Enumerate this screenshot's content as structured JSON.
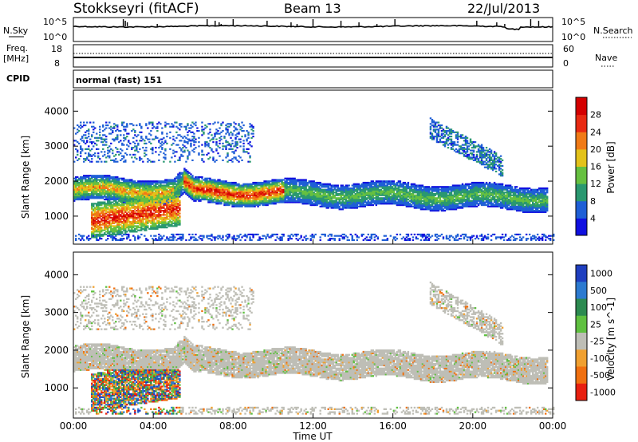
{
  "header": {
    "station": "Stokkseyri (fitACF)",
    "beam": "Beam 13",
    "date": "22/Jul/2013"
  },
  "sky_panel": {
    "left_label": "N.Sky",
    "right_label": "N.Search",
    "tick_top_left": "10^5",
    "tick_bottom_left": "10^0",
    "tick_top_right": "10^5",
    "tick_bottom_right": "10^0"
  },
  "freq_panel": {
    "left_label_1": "Freq.",
    "left_label_2": "[MHz]",
    "tick_top_left": "18",
    "tick_bottom_left": "8",
    "right_label": "Nave",
    "tick_top_right": "60",
    "tick_bottom_right": "0"
  },
  "cpid": {
    "label": "CPID",
    "mode": "normal (fast) 151"
  },
  "chart_data": [
    {
      "type": "heatmap",
      "panel": "power",
      "ylabel": "Slant Range [km]",
      "xlabel": "",
      "x_ticks": [
        "00:00",
        "04:00",
        "08:00",
        "12:00",
        "16:00",
        "20:00",
        "00:00"
      ],
      "y_ticks": [
        "1000",
        "2000",
        "3000",
        "4000"
      ],
      "ylim": [
        200,
        4600
      ],
      "xlim_hours": [
        0,
        24
      ],
      "colorbar": {
        "label": "Power [dB]",
        "ticks": [
          "4",
          "8",
          "12",
          "16",
          "20",
          "24",
          "28"
        ],
        "range": [
          0,
          32
        ],
        "colors": [
          "#1010e0",
          "#1f5fd6",
          "#2a9870",
          "#66c040",
          "#e3c21a",
          "#f07a16",
          "#e82a12",
          "#d40000"
        ]
      },
      "bands": [
        {
          "name": "main-echo",
          "t_start": 0.0,
          "t_end": 23.7,
          "r_center_start": 1750,
          "r_center_end": 1500,
          "width": 350
        },
        {
          "name": "near-range-heating",
          "t_start": 0.8,
          "t_end": 5.3,
          "r_center": 1000,
          "width": 500
        },
        {
          "name": "far-range",
          "t_start": 0.0,
          "t_end": 9.0,
          "r_center": 3100,
          "width": 600
        },
        {
          "name": "arc-evening",
          "t_start": 17.8,
          "t_end": 21.5,
          "r_center": 3000,
          "width": 300
        }
      ]
    },
    {
      "type": "heatmap",
      "panel": "velocity",
      "ylabel": "Slant Range [km]",
      "xlabel": "Time UT",
      "x_ticks": [
        "00:00",
        "04:00",
        "08:00",
        "12:00",
        "16:00",
        "20:00",
        "00:00"
      ],
      "y_ticks": [
        "1000",
        "2000",
        "3000",
        "4000"
      ],
      "ylim": [
        200,
        4600
      ],
      "xlim_hours": [
        0,
        24
      ],
      "colorbar": {
        "label": "Velocity [m s^-1]",
        "ticks": [
          "1000",
          "500",
          "100",
          "25",
          "-25",
          "-100",
          "-500",
          "-1000"
        ],
        "colors": [
          "#1f3fbf",
          "#2c7ad0",
          "#2c8a50",
          "#5fc040",
          "#bebeb6",
          "#f0a030",
          "#f07010",
          "#e82010"
        ]
      }
    }
  ]
}
